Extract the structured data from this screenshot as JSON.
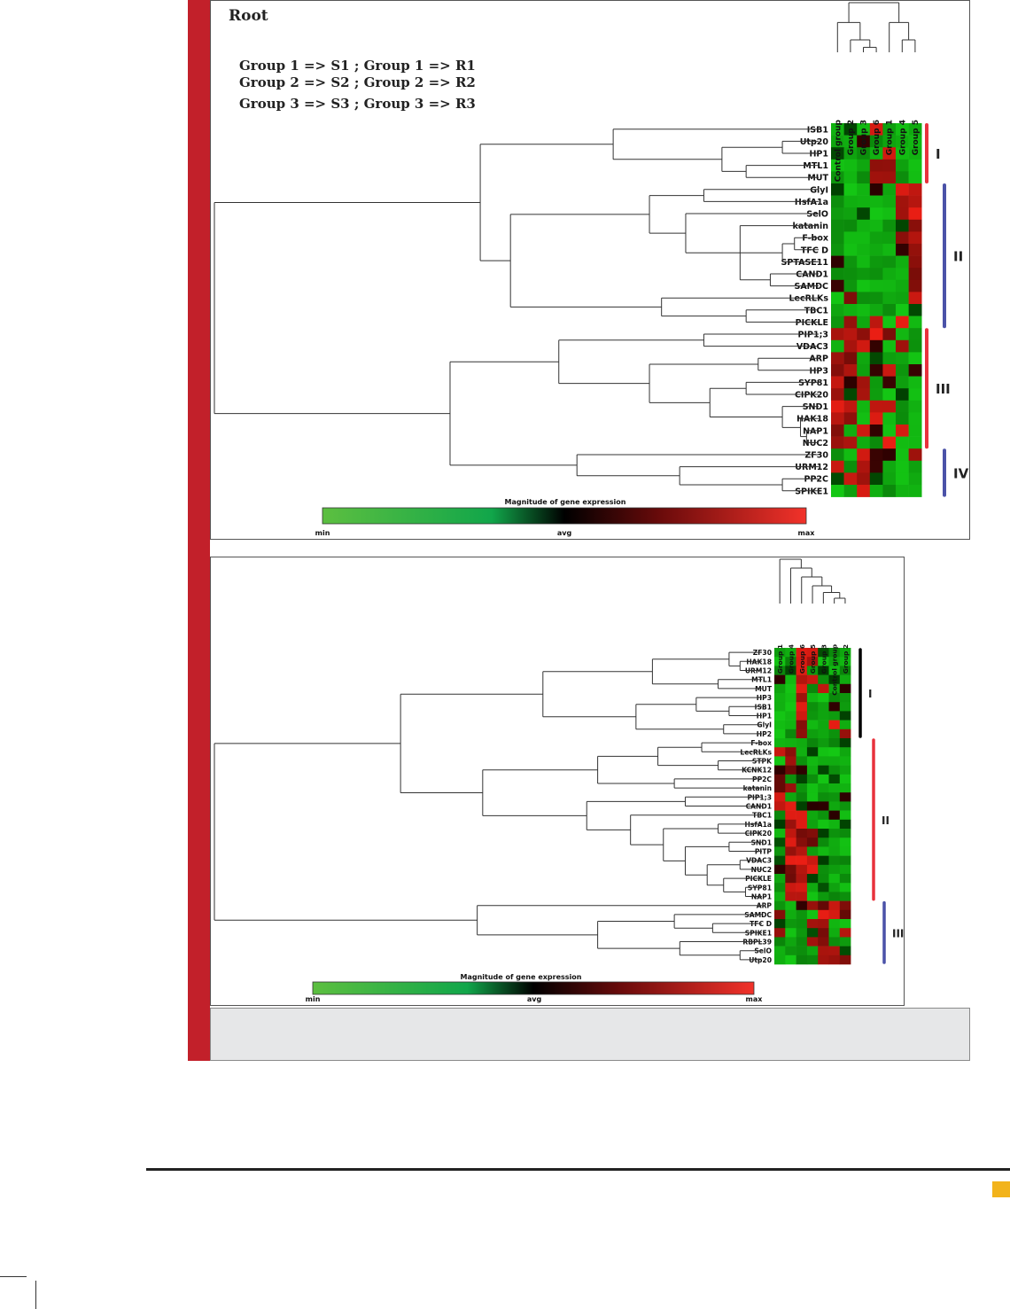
{
  "colors": {
    "accent_bar": "#c2202a",
    "caption_bg": "#e6e7e8",
    "tag": "#f2b31b",
    "cluster_red": "#e8323c",
    "cluster_blue": "#4b52a8",
    "cluster_black": "#000000"
  },
  "top_figure": {
    "title": "Root",
    "legend_lines": [
      "Group 1 => S1 ; Group 1 => R1",
      "Group 2 => S2 ; Group 2 => R2",
      "Group 3 => S3 ; Group 3 => R3"
    ],
    "columns": [
      "Control group",
      "Group 2",
      "Group 3",
      "Group 6",
      "Group 1",
      "Group 4",
      "Group 5"
    ],
    "genes": [
      "ISB1",
      "Utp20",
      "HP1",
      "MTL1",
      "MUT",
      "GlyI",
      "HsfA1a",
      "SelO",
      "katanin",
      "F-box",
      "TFC D",
      "SPTASE11",
      "CAND1",
      "SAMDC",
      "LecRLKs",
      "TBC1",
      "PICKLE",
      "PIP1;3",
      "VDAC3",
      "ARP",
      "HP3",
      "SYP81",
      "CIPK20",
      "SND1",
      "HAK18",
      "NAP1",
      "NUC2",
      "ZF30",
      "URM12",
      "PP2C",
      "SPIKE1"
    ],
    "clusters": [
      {
        "label": "I",
        "color": "red"
      },
      {
        "label": "II",
        "color": "blue"
      },
      {
        "label": "III",
        "color": "red"
      },
      {
        "label": "IV",
        "color": "blue"
      }
    ],
    "scale_title": "Magnitude of gene expression",
    "scale_labels": [
      "min",
      "avg",
      "max"
    ]
  },
  "bottom_figure": {
    "columns": [
      "Group 1",
      "Group 4",
      "Group 6",
      "Group 5",
      "Group 3",
      "Control group",
      "Group 2"
    ],
    "genes": [
      "ZF30",
      "HAK18",
      "URM12",
      "MTL1",
      "MUT",
      "HP3",
      "ISB1",
      "HP1",
      "GlyI",
      "HP2",
      "F-box",
      "LecRLKs",
      "STPK",
      "KCNK12",
      "PP2C",
      "katanin",
      "PIP1;3",
      "CAND1",
      "TBC1",
      "HsfA1a",
      "CIPK20",
      "SND1",
      "PITP",
      "VDAC3",
      "NUC2",
      "PICKLE",
      "SYP81",
      "NAP1",
      "ARP",
      "SAMDC",
      "TFC D",
      "SPIKE1",
      "RBPL39",
      "SelO",
      "Utp20"
    ],
    "clusters": [
      {
        "label": "I",
        "color": "black"
      },
      {
        "label": "II",
        "color": "red"
      },
      {
        "label": "III",
        "color": "blue"
      }
    ],
    "scale_title": "Magnitude of gene expression",
    "scale_labels": [
      "min",
      "avg",
      "max"
    ]
  }
}
